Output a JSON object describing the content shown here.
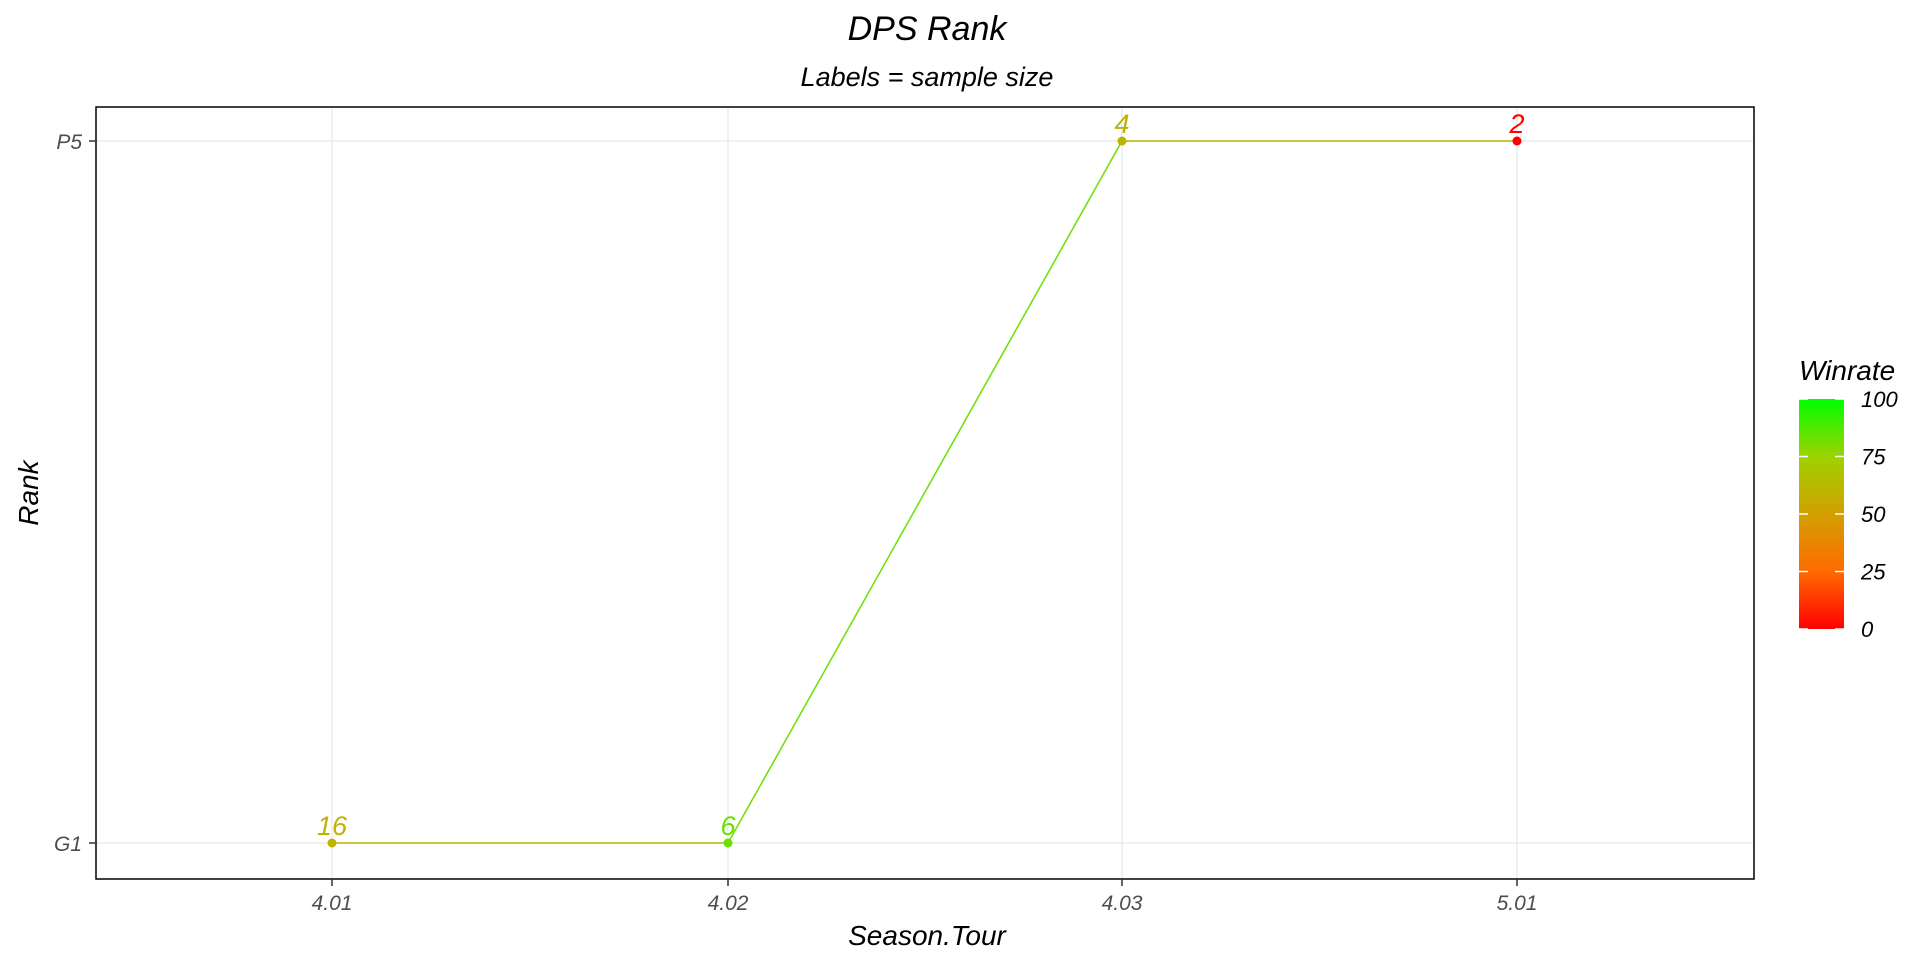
{
  "chart_data": {
    "type": "line",
    "title": "DPS Rank",
    "subtitle": "Labels = sample size",
    "xlabel": "Season.Tour",
    "ylabel": "Rank",
    "categories": [
      "4.01",
      "4.02",
      "4.03",
      "5.01"
    ],
    "y_categories": [
      "G1",
      "P5"
    ],
    "points": [
      {
        "x": "4.01",
        "y": "G1",
        "label": "16",
        "winrate": 60
      },
      {
        "x": "4.02",
        "y": "G1",
        "label": "6",
        "winrate": 83
      },
      {
        "x": "4.03",
        "y": "P5",
        "label": "4",
        "winrate": 60
      },
      {
        "x": "5.01",
        "y": "P5",
        "label": "2",
        "winrate": 0
      }
    ],
    "grid": true,
    "legend": {
      "title": "Winrate",
      "position": "right",
      "ticks": [
        "100",
        "75",
        "50",
        "25",
        "0"
      ],
      "range": [
        0,
        100
      ],
      "colors": {
        "low": "#ff0000",
        "mid": "#c8b400",
        "high": "#00ff00"
      }
    }
  }
}
